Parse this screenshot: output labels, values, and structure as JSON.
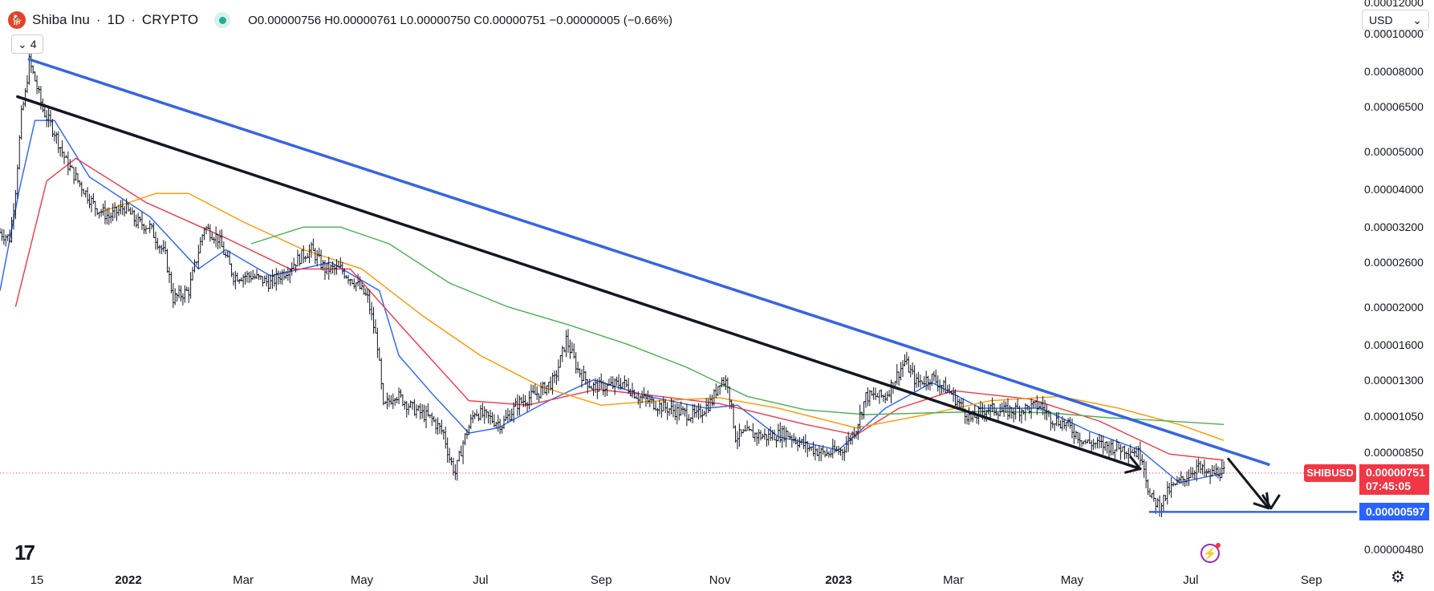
{
  "header": {
    "logo_text": "🐕",
    "symbol": "Shiba Inu",
    "interval": "1D",
    "exchange": "CRYPTO",
    "sep": "·",
    "ohlc": {
      "o_label": "O",
      "o": "0.00000756",
      "h_label": "H",
      "h": "0.00000761",
      "l_label": "L",
      "l": "0.00000750",
      "c_label": "C",
      "c": "0.00000751",
      "chg": "−0.00000005 (−0.66%)"
    },
    "indicator_count": "4",
    "status_color": "#22ab94"
  },
  "currency": {
    "label": "USD",
    "icon": "chevron-down-icon"
  },
  "chart_data": {
    "type": "candlestick",
    "scale": "log",
    "grid": false,
    "ylim": [
      4.4e-06,
      0.000122
    ],
    "xlim": [
      "2021-10-27",
      "2023-09-24"
    ],
    "y_ticks": [
      {
        "v": 0.00012,
        "label": "0.00012000"
      },
      {
        "v": 0.0001,
        "label": "0.00010000"
      },
      {
        "v": 8e-05,
        "label": "0.00008000"
      },
      {
        "v": 6.5e-05,
        "label": "0.00006500"
      },
      {
        "v": 5e-05,
        "label": "0.00005000"
      },
      {
        "v": 4e-05,
        "label": "0.00004000"
      },
      {
        "v": 3.2e-05,
        "label": "0.00003200"
      },
      {
        "v": 2.6e-05,
        "label": "0.00002600"
      },
      {
        "v": 2e-05,
        "label": "0.00002000"
      },
      {
        "v": 1.6e-05,
        "label": "0.00001600"
      },
      {
        "v": 1.3e-05,
        "label": "0.00001300"
      },
      {
        "v": 1.05e-05,
        "label": "0.00001050"
      },
      {
        "v": 8.5e-06,
        "label": "0.00000850"
      },
      {
        "v": 4.8e-06,
        "label": "0.00000480"
      }
    ],
    "x_ticks": [
      {
        "d": "2021-11-15",
        "label": "15",
        "bold": false
      },
      {
        "d": "2022-01-01",
        "label": "2022",
        "bold": true
      },
      {
        "d": "2022-03-01",
        "label": "Mar",
        "bold": false
      },
      {
        "d": "2022-05-01",
        "label": "May",
        "bold": false
      },
      {
        "d": "2022-07-01",
        "label": "Jul",
        "bold": false
      },
      {
        "d": "2022-09-01",
        "label": "Sep",
        "bold": false
      },
      {
        "d": "2022-11-01",
        "label": "Nov",
        "bold": false
      },
      {
        "d": "2023-01-01",
        "label": "2023",
        "bold": true
      },
      {
        "d": "2023-03-01",
        "label": "Mar",
        "bold": false
      },
      {
        "d": "2023-05-01",
        "label": "May",
        "bold": false
      },
      {
        "d": "2023-07-01",
        "label": "Jul",
        "bold": false
      },
      {
        "d": "2023-09-01",
        "label": "Sep",
        "bold": false
      }
    ],
    "price_path": [
      [
        "2021-10-27",
        3.1e-05
      ],
      [
        "2021-11-01",
        3e-05
      ],
      [
        "2021-11-04",
        4e-05
      ],
      [
        "2021-11-07",
        6.2e-05
      ],
      [
        "2021-11-09",
        7e-05
      ],
      [
        "2021-11-11",
        8.5e-05
      ],
      [
        "2021-11-14",
        7.6e-05
      ],
      [
        "2021-11-18",
        6.4e-05
      ],
      [
        "2021-11-24",
        5.6e-05
      ],
      [
        "2021-11-30",
        4.7e-05
      ],
      [
        "2021-12-06",
        4.2e-05
      ],
      [
        "2021-12-15",
        3.6e-05
      ],
      [
        "2021-12-22",
        3.4e-05
      ],
      [
        "2021-12-30",
        3.6e-05
      ],
      [
        "2022-01-05",
        3.3e-05
      ],
      [
        "2022-01-12",
        3.2e-05
      ],
      [
        "2022-01-20",
        2.7e-05
      ],
      [
        "2022-01-24",
        2.1e-05
      ],
      [
        "2022-02-01",
        2.2e-05
      ],
      [
        "2022-02-09",
        3.2e-05
      ],
      [
        "2022-02-16",
        3e-05
      ],
      [
        "2022-02-24",
        2.4e-05
      ],
      [
        "2022-03-05",
        2.4e-05
      ],
      [
        "2022-03-15",
        2.3e-05
      ],
      [
        "2022-03-24",
        2.5e-05
      ],
      [
        "2022-03-31",
        2.7e-05
      ],
      [
        "2022-04-05",
        2.8e-05
      ],
      [
        "2022-04-12",
        2.5e-05
      ],
      [
        "2022-04-20",
        2.5e-05
      ],
      [
        "2022-04-28",
        2.3e-05
      ],
      [
        "2022-05-04",
        2.1e-05
      ],
      [
        "2022-05-09",
        1.6e-05
      ],
      [
        "2022-05-12",
        1.1e-05
      ],
      [
        "2022-05-18",
        1.2e-05
      ],
      [
        "2022-05-27",
        1.1e-05
      ],
      [
        "2022-06-06",
        1.03e-05
      ],
      [
        "2022-06-12",
        9.5e-06
      ],
      [
        "2022-06-15",
        8.2e-06
      ],
      [
        "2022-06-18",
        7.5e-06
      ],
      [
        "2022-06-22",
        9e-06
      ],
      [
        "2022-06-28",
        1.08e-05
      ],
      [
        "2022-07-05",
        1.04e-05
      ],
      [
        "2022-07-12",
        1e-05
      ],
      [
        "2022-07-20",
        1.13e-05
      ],
      [
        "2022-07-30",
        1.2e-05
      ],
      [
        "2022-08-08",
        1.3e-05
      ],
      [
        "2022-08-14",
        1.65e-05
      ],
      [
        "2022-08-20",
        1.38e-05
      ],
      [
        "2022-08-27",
        1.25e-05
      ],
      [
        "2022-09-05",
        1.25e-05
      ],
      [
        "2022-09-12",
        1.28e-05
      ],
      [
        "2022-09-20",
        1.18e-05
      ],
      [
        "2022-09-30",
        1.12e-05
      ],
      [
        "2022-10-10",
        1.08e-05
      ],
      [
        "2022-10-20",
        1.05e-05
      ],
      [
        "2022-10-28",
        1.15e-05
      ],
      [
        "2022-11-01",
        1.3e-05
      ],
      [
        "2022-11-05",
        1.28e-05
      ],
      [
        "2022-11-09",
        9.3e-06
      ],
      [
        "2022-11-15",
        9.5e-06
      ],
      [
        "2022-11-25",
        9.3e-06
      ],
      [
        "2022-12-05",
        9.5e-06
      ],
      [
        "2022-12-15",
        8.8e-06
      ],
      [
        "2022-12-25",
        8.4e-06
      ],
      [
        "2023-01-03",
        8.6e-06
      ],
      [
        "2023-01-10",
        9.8e-06
      ],
      [
        "2023-01-15",
        1.18e-05
      ],
      [
        "2023-01-25",
        1.18e-05
      ],
      [
        "2023-02-04",
        1.45e-05
      ],
      [
        "2023-02-10",
        1.28e-05
      ],
      [
        "2023-02-18",
        1.32e-05
      ],
      [
        "2023-02-28",
        1.2e-05
      ],
      [
        "2023-03-10",
        1.03e-05
      ],
      [
        "2023-03-18",
        1.1e-05
      ],
      [
        "2023-03-28",
        1.08e-05
      ],
      [
        "2023-04-08",
        1.1e-05
      ],
      [
        "2023-04-15",
        1.12e-05
      ],
      [
        "2023-04-20",
        1.04e-05
      ],
      [
        "2023-04-28",
        1e-05
      ],
      [
        "2023-05-08",
        9e-06
      ],
      [
        "2023-05-20",
        8.8e-06
      ],
      [
        "2023-06-01",
        8.6e-06
      ],
      [
        "2023-06-06",
        8.3e-06
      ],
      [
        "2023-06-10",
        6.5e-06
      ],
      [
        "2023-06-15",
        6.2e-06
      ],
      [
        "2023-06-20",
        6.8e-06
      ],
      [
        "2023-06-28",
        7.3e-06
      ],
      [
        "2023-07-04",
        7.8e-06
      ],
      [
        "2023-07-10",
        7.4e-06
      ],
      [
        "2023-07-15",
        7.6e-06
      ],
      [
        "2023-07-18",
        7.5e-06
      ]
    ],
    "moving_averages": [
      {
        "color": "#2962ff",
        "points": [
          [
            "2021-10-27",
            2.2e-05
          ],
          [
            "2021-11-06",
            4e-05
          ],
          [
            "2021-11-14",
            6e-05
          ],
          [
            "2021-11-24",
            6e-05
          ],
          [
            "2021-12-12",
            4.3e-05
          ],
          [
            "2022-01-12",
            3.4e-05
          ],
          [
            "2022-02-06",
            2.5e-05
          ],
          [
            "2022-02-20",
            2.8e-05
          ],
          [
            "2022-03-15",
            2.4e-05
          ],
          [
            "2022-04-15",
            2.6e-05
          ],
          [
            "2022-05-10",
            2.2e-05
          ],
          [
            "2022-05-20",
            1.5e-05
          ],
          [
            "2022-06-06",
            1.2e-05
          ],
          [
            "2022-06-25",
            9.5e-06
          ],
          [
            "2022-07-10",
            9.8e-06
          ],
          [
            "2022-08-05",
            1.15e-05
          ],
          [
            "2022-08-28",
            1.3e-05
          ],
          [
            "2022-09-25",
            1.18e-05
          ],
          [
            "2022-10-25",
            1.1e-05
          ],
          [
            "2022-11-10",
            1.12e-05
          ],
          [
            "2022-12-01",
            9.3e-06
          ],
          [
            "2023-01-01",
            8.6e-06
          ],
          [
            "2023-01-25",
            1.1e-05
          ],
          [
            "2023-02-18",
            1.28e-05
          ],
          [
            "2023-03-15",
            1.1e-05
          ],
          [
            "2023-04-15",
            1.1e-05
          ],
          [
            "2023-05-10",
            9.6e-06
          ],
          [
            "2023-06-05",
            8.6e-06
          ],
          [
            "2023-06-25",
            7.1e-06
          ],
          [
            "2023-07-18",
            7.5e-06
          ]
        ]
      },
      {
        "color": "#f23645",
        "points": [
          [
            "2021-11-04",
            2e-05
          ],
          [
            "2021-11-20",
            4.2e-05
          ],
          [
            "2021-12-05",
            4.8e-05
          ],
          [
            "2022-01-10",
            3.7e-05
          ],
          [
            "2022-02-20",
            3e-05
          ],
          [
            "2022-03-25",
            2.5e-05
          ],
          [
            "2022-04-25",
            2.5e-05
          ],
          [
            "2022-05-25",
            1.7e-05
          ],
          [
            "2022-06-25",
            1.15e-05
          ],
          [
            "2022-07-25",
            1.12e-05
          ],
          [
            "2022-08-30",
            1.23e-05
          ],
          [
            "2022-10-01",
            1.18e-05
          ],
          [
            "2022-11-01",
            1.13e-05
          ],
          [
            "2022-12-15",
            1e-05
          ],
          [
            "2023-01-10",
            9.4e-06
          ],
          [
            "2023-02-01",
            1.1e-05
          ],
          [
            "2023-03-01",
            1.22e-05
          ],
          [
            "2023-04-10",
            1.16e-05
          ],
          [
            "2023-05-15",
            1.02e-05
          ],
          [
            "2023-06-20",
            8.4e-06
          ],
          [
            "2023-07-18",
            8.1e-06
          ]
        ]
      },
      {
        "color": "#ff9800",
        "points": [
          [
            "2021-12-18",
            3.5e-05
          ],
          [
            "2022-01-15",
            3.9e-05
          ],
          [
            "2022-02-01",
            3.9e-05
          ],
          [
            "2022-03-01",
            3.3e-05
          ],
          [
            "2022-04-01",
            2.8e-05
          ],
          [
            "2022-05-01",
            2.5e-05
          ],
          [
            "2022-06-01",
            1.9e-05
          ],
          [
            "2022-07-01",
            1.5e-05
          ],
          [
            "2022-08-01",
            1.25e-05
          ],
          [
            "2022-09-01",
            1.12e-05
          ],
          [
            "2022-10-01",
            1.15e-05
          ],
          [
            "2022-11-01",
            1.17e-05
          ],
          [
            "2022-12-01",
            1.1e-05
          ],
          [
            "2023-01-10",
            9.8e-06
          ],
          [
            "2023-02-15",
            1.06e-05
          ],
          [
            "2023-03-20",
            1.15e-05
          ],
          [
            "2023-04-25",
            1.18e-05
          ],
          [
            "2023-05-25",
            1.1e-05
          ],
          [
            "2023-06-25",
            1e-05
          ],
          [
            "2023-07-18",
            9.1e-06
          ]
        ]
      },
      {
        "color": "#4caf50",
        "points": [
          [
            "2022-03-05",
            2.9e-05
          ],
          [
            "2022-04-01",
            3.2e-05
          ],
          [
            "2022-04-20",
            3.2e-05
          ],
          [
            "2022-05-15",
            2.9e-05
          ],
          [
            "2022-06-15",
            2.3e-05
          ],
          [
            "2022-07-15",
            2e-05
          ],
          [
            "2022-08-15",
            1.8e-05
          ],
          [
            "2022-09-15",
            1.6e-05
          ],
          [
            "2022-10-15",
            1.4e-05
          ],
          [
            "2022-11-15",
            1.18e-05
          ],
          [
            "2022-12-15",
            1.09e-05
          ],
          [
            "2023-01-15",
            1.06e-05
          ],
          [
            "2023-02-15",
            1.07e-05
          ],
          [
            "2023-03-20",
            1.08e-05
          ],
          [
            "2023-04-20",
            1.07e-05
          ],
          [
            "2023-05-20",
            1.04e-05
          ],
          [
            "2023-06-20",
            1.02e-05
          ],
          [
            "2023-07-18",
            1e-05
          ]
        ]
      }
    ],
    "trendlines": [
      {
        "color": "#3764e6",
        "width": 3.5,
        "from": [
          "2021-11-11",
          8.6e-05
        ],
        "to": [
          "2023-08-10",
          7.9e-06
        ]
      },
      {
        "color": "#131722",
        "width": 3.5,
        "from": [
          "2021-11-05",
          6.9e-05
        ],
        "to": [
          "2023-06-05",
          7.7e-06
        ]
      },
      {
        "color": "#3764e6",
        "width": 2.5,
        "from": [
          "2023-06-10",
          5.97e-06
        ],
        "to": [
          "2023-09-24",
          5.97e-06
        ]
      }
    ],
    "arrows": [
      {
        "from": [
          "2023-07-20",
          8.2e-06
        ],
        "to": [
          "2023-08-10",
          6.1e-06
        ]
      }
    ],
    "arrowheads": [
      {
        "at": [
          "2023-06-05",
          7.7e-06
        ],
        "dir": "down-right"
      }
    ],
    "last_price": {
      "symbol": "SHIBUSD",
      "value": "0.00000751",
      "countdown": "07:45:05",
      "color": "#f23645",
      "v": 7.51e-06
    },
    "support_level": {
      "value": "0.00000597",
      "color": "#2962ff",
      "v": 5.97e-06
    }
  }
}
